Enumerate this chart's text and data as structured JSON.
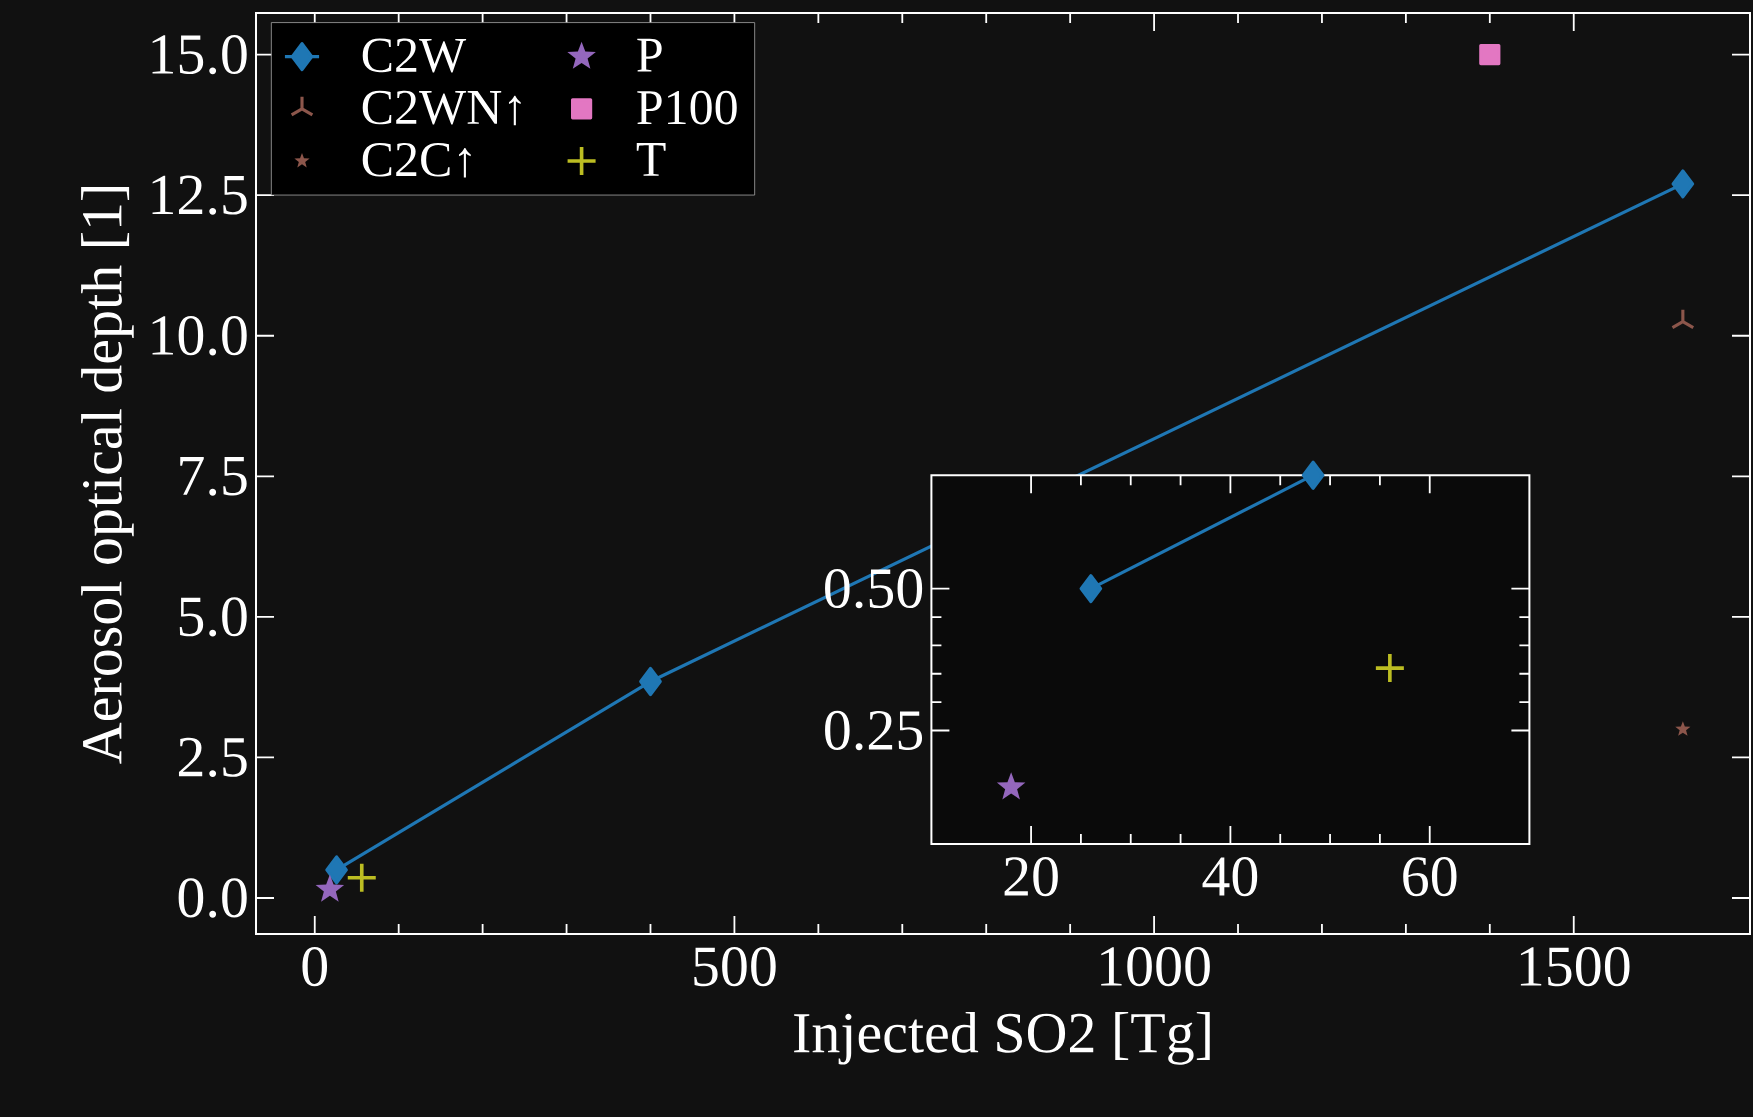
{
  "chart_data": [
    {
      "type": "scatter",
      "xlabel": "Injected SO2 [Tg]",
      "ylabel": "Aerosol optical depth [1]",
      "xlim": [
        -70,
        1710
      ],
      "ylim": [
        -0.64,
        15.74
      ],
      "xticks": [
        0,
        500,
        1000,
        1500
      ],
      "yticks": [
        {
          "value": 0,
          "label": "0.0"
        },
        {
          "value": 2.5,
          "label": "2.5"
        },
        {
          "value": 5,
          "label": "5.0"
        },
        {
          "value": 7.5,
          "label": "7.5"
        },
        {
          "value": 10,
          "label": "10.0"
        },
        {
          "value": 12.5,
          "label": "12.5"
        },
        {
          "value": 15,
          "label": "15.0"
        }
      ],
      "legend": "top left",
      "grid": false,
      "series": [
        {
          "name": "C2W",
          "type": "line",
          "marker": "diamond",
          "color": "#1f77b4",
          "x": [
            26,
            400,
            1630
          ],
          "values": [
            0.5,
            3.85,
            12.7
          ]
        },
        {
          "name": "C2WN↑",
          "type": "scatter",
          "color": "#8c564b",
          "x": [
            1630
          ],
          "values": [
            10.25
          ]
        },
        {
          "name": "C2C↑",
          "type": "scatter",
          "marker": "star",
          "color": "#8c564b",
          "x": [
            1630
          ],
          "values": [
            3.0
          ]
        },
        {
          "name": "P",
          "type": "scatter",
          "marker": "star",
          "color": "#9467bd",
          "x": [
            18
          ],
          "values": [
            0.15
          ]
        },
        {
          "name": "P100",
          "type": "scatter",
          "marker": "square",
          "color": "#e377c2",
          "x": [
            1400
          ],
          "values": [
            15.0
          ]
        },
        {
          "name": "T",
          "type": "scatter",
          "marker": "cross",
          "color": "#bcbd22",
          "x": [
            56
          ],
          "values": [
            0.36
          ]
        }
      ]
    },
    {
      "type": "scatter",
      "xlim": [
        10,
        70
      ],
      "ylim": [
        0.05,
        0.7
      ],
      "xticks": [
        20,
        40,
        60
      ],
      "yticks": [
        {
          "value": 0.25,
          "label": "0.25"
        },
        {
          "value": 0.5,
          "label": "0.50"
        }
      ],
      "grid": false,
      "series": [
        {
          "type": "line",
          "marker": "diamond",
          "color": "#1f77b4",
          "x": [
            26,
            48.3
          ],
          "values": [
            0.5,
            0.7
          ]
        },
        {
          "type": "scatter",
          "marker": "star",
          "color": "#9467bd",
          "x": [
            18
          ],
          "values": [
            0.15
          ]
        },
        {
          "type": "scatter",
          "marker": "cross",
          "color": "#bcbd22",
          "x": [
            56
          ],
          "values": [
            0.36
          ]
        }
      ]
    }
  ]
}
